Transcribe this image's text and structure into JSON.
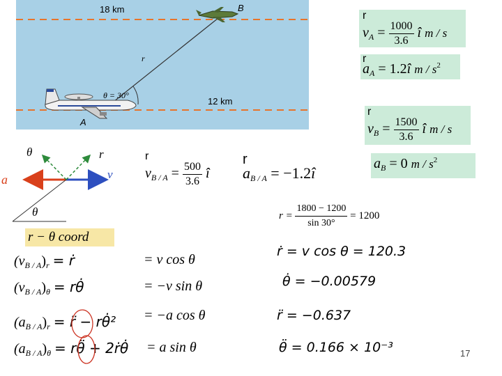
{
  "figure": {
    "label_18km": "18 km",
    "label_B": "B",
    "label_r": "r",
    "label_theta30": "θ = 30°",
    "label_12km": "12 km",
    "label_A": "A"
  },
  "vector_sketch": {
    "theta_top": "θ",
    "r_label": "r",
    "a_label": "a",
    "v_label": "v",
    "theta_bottom": "θ"
  },
  "coord_box": {
    "text": "r − θ  coord"
  },
  "equations": {
    "vA": {
      "lhs": "v",
      "sub": "A",
      "eq": "=",
      "num": "1000",
      "den": "3.6",
      "unit_vec": "î",
      "units": "m / s"
    },
    "aA": {
      "lhs": "a",
      "sub": "A",
      "eq": "= 1.2",
      "unit_vec": "î",
      "units": "m / s",
      "sup": "2"
    },
    "vB": {
      "lhs": "v",
      "sub": "B",
      "eq": "=",
      "num": "1500",
      "den": "3.6",
      "unit_vec": "î",
      "units": "m / s"
    },
    "aB": {
      "lhs": "a",
      "sub": "B",
      "eq": "= 0",
      "units": "m / s",
      "sup": "2"
    },
    "vBA": {
      "lhs": "v",
      "sub": "B / A",
      "eq": "=",
      "num": "500",
      "den": "3.6",
      "unit_vec": "î"
    },
    "aBA": {
      "lhs": "a",
      "sub": "B / A",
      "eq": "= −1.2",
      "unit_vec": "î"
    },
    "r_calc": {
      "lhs": "r =",
      "num": "1800 − 1200",
      "den": "sin 30°",
      "rhs": "= 1200"
    }
  },
  "components_left": [
    {
      "lhs": "(v",
      "sub": "B / A",
      "close": ")",
      "comp": "r",
      "rhs": "= ṙ"
    },
    {
      "lhs": "(v",
      "sub": "B / A",
      "close": ")",
      "comp": "θ",
      "rhs": "= rθ̇"
    },
    {
      "lhs": "(a",
      "sub": "B / A",
      "close": ")",
      "comp": "r",
      "rhs": "= r̈ − rθ̇²"
    },
    {
      "lhs": "(a",
      "sub": "B / A",
      "close": ")",
      "comp": "θ",
      "rhs": "= rθ̈ + 2ṙθ̇"
    }
  ],
  "components_mid": [
    "= v cos θ",
    "= −v sin θ",
    "= −a cos θ",
    "= a sin θ"
  ],
  "results": [
    "ṙ = v cos θ = 120.3",
    "θ̇ = −0.00579",
    "r̈ = −0.637",
    "θ̈ = 0.166 × 10⁻³"
  ],
  "page_number": "17",
  "colors": {
    "sky": "#a8d0e6",
    "dash_line": "#e8742a",
    "eq_box": "#ccebd9",
    "coord_box": "#f7e7a6",
    "arrow_red": "#d9401b",
    "arrow_blue": "#2d4fbf",
    "arrow_green": "#2e8b3c",
    "circle": "#cc3322"
  }
}
